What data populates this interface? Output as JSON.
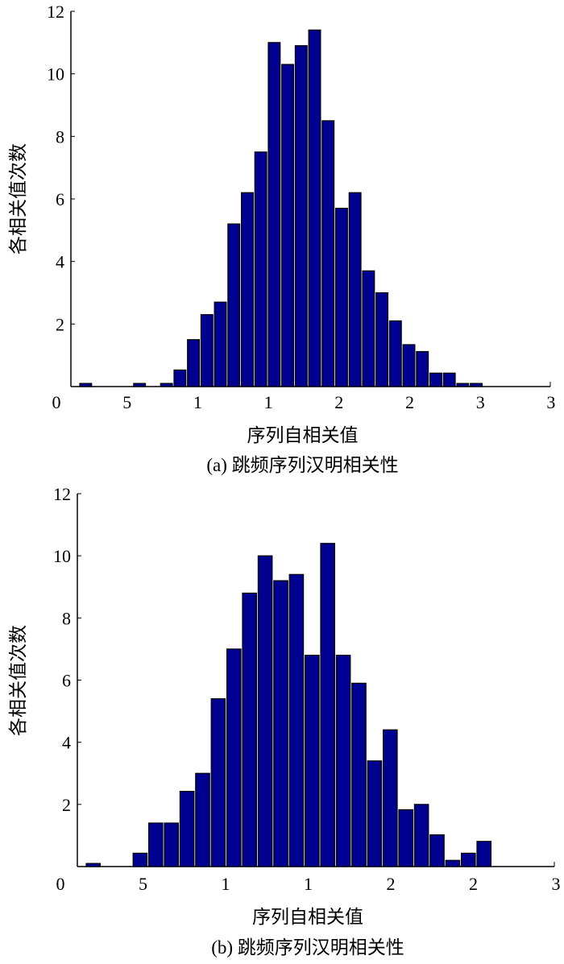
{
  "colors": {
    "bar": "#000090",
    "edge": "#000000"
  },
  "chart_data": [
    {
      "type": "bar",
      "caption": "(a) 跳频序列汉明相关性",
      "xlabel": "序列自相关值",
      "ylabel": "各相关值次数",
      "ylim": [
        0,
        12
      ],
      "yticks": [
        "2",
        "4",
        "6",
        "8",
        "10",
        "12"
      ],
      "xtick_labels": [
        "0",
        "5",
        "1",
        "1",
        "2",
        "2",
        "3",
        "3"
      ],
      "bins_total": 35,
      "bin_index": [
        0,
        4,
        6,
        7,
        8,
        9,
        10,
        11,
        12,
        13,
        14,
        15,
        16,
        17,
        18,
        19,
        20,
        21,
        22,
        23,
        24,
        25,
        26,
        27,
        28,
        29
      ],
      "values": [
        0.1,
        0.1,
        0.1,
        0.53,
        1.5,
        2.3,
        2.7,
        5.2,
        6.2,
        7.5,
        11.0,
        10.3,
        10.9,
        11.4,
        8.5,
        5.7,
        6.2,
        3.7,
        3.0,
        2.1,
        1.34,
        1.12,
        0.43,
        0.43,
        0.1,
        0.1
      ]
    },
    {
      "type": "bar",
      "caption": "(b) 跳频序列汉明相关性",
      "xlabel": "序列自相关值",
      "ylabel": "各相关值次数",
      "ylim": [
        0,
        12
      ],
      "yticks": [
        "2",
        "4",
        "6",
        "8",
        "10",
        "12"
      ],
      "xtick_labels": [
        "0",
        "5",
        "1",
        "1",
        "2",
        "2",
        "3"
      ],
      "bins_total": 30,
      "bin_index": [
        0,
        3,
        4,
        5,
        6,
        7,
        8,
        9,
        10,
        11,
        12,
        13,
        14,
        15,
        16,
        17,
        18,
        19,
        20,
        21,
        22,
        23,
        24,
        25
      ],
      "values": [
        0.1,
        0.43,
        1.4,
        1.4,
        2.42,
        3.0,
        5.4,
        7.0,
        8.8,
        10.0,
        9.2,
        9.4,
        6.8,
        10.4,
        6.8,
        5.9,
        3.4,
        4.4,
        1.83,
        2.0,
        1.02,
        0.2,
        0.43,
        0.81
      ]
    }
  ]
}
